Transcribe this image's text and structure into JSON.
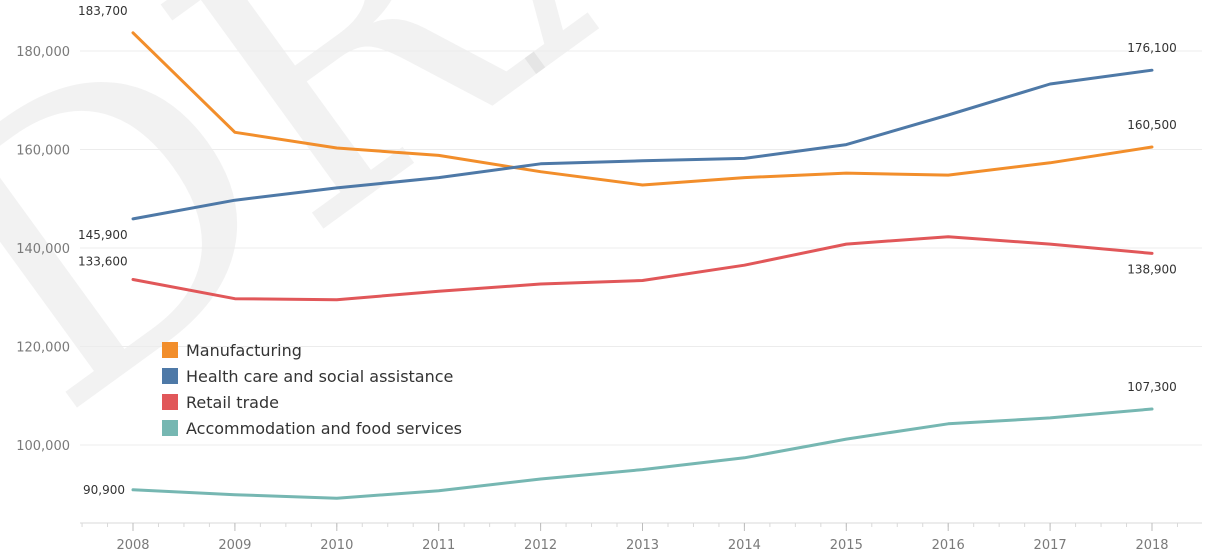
{
  "watermark": "DRAFT",
  "chart_data": {
    "type": "line",
    "x": [
      "2008",
      "2009",
      "2010",
      "2011",
      "2012",
      "2013",
      "2014",
      "2015",
      "2016",
      "2017",
      "2018"
    ],
    "ylim": [
      86000,
      186000
    ],
    "yticks": [
      100000,
      120000,
      140000,
      160000,
      180000
    ],
    "ytick_labels": [
      "100,000",
      "120,000",
      "140,000",
      "160,000",
      "180,000"
    ],
    "grid": true,
    "legend_position": "center-left",
    "series": [
      {
        "name": "Manufacturing",
        "color": "#F28E2B",
        "values": [
          183700,
          163500,
          160300,
          158800,
          155500,
          152800,
          154300,
          155200,
          154800,
          157300,
          160500
        ],
        "labels": {
          "first": "183,700",
          "last": "160,500"
        }
      },
      {
        "name": "Health care and social assistance",
        "color": "#4E79A7",
        "values": [
          145900,
          149700,
          152200,
          154300,
          157100,
          157700,
          158200,
          161000,
          167000,
          173300,
          176100
        ],
        "labels": {
          "first": "145,900",
          "last": "176,100"
        }
      },
      {
        "name": "Retail trade",
        "color": "#E15759",
        "values": [
          133600,
          129700,
          129500,
          131200,
          132700,
          133400,
          136500,
          140800,
          142300,
          140800,
          138900
        ],
        "labels": {
          "first": "133,600",
          "last": "138,900"
        }
      },
      {
        "name": "Accommodation and food services",
        "color": "#76B7B2",
        "values": [
          90900,
          89900,
          89200,
          90700,
          93100,
          95000,
          97400,
          101200,
          104300,
          105500,
          107300
        ],
        "labels": {
          "first": "90,900",
          "last": "107,300"
        }
      }
    ]
  }
}
